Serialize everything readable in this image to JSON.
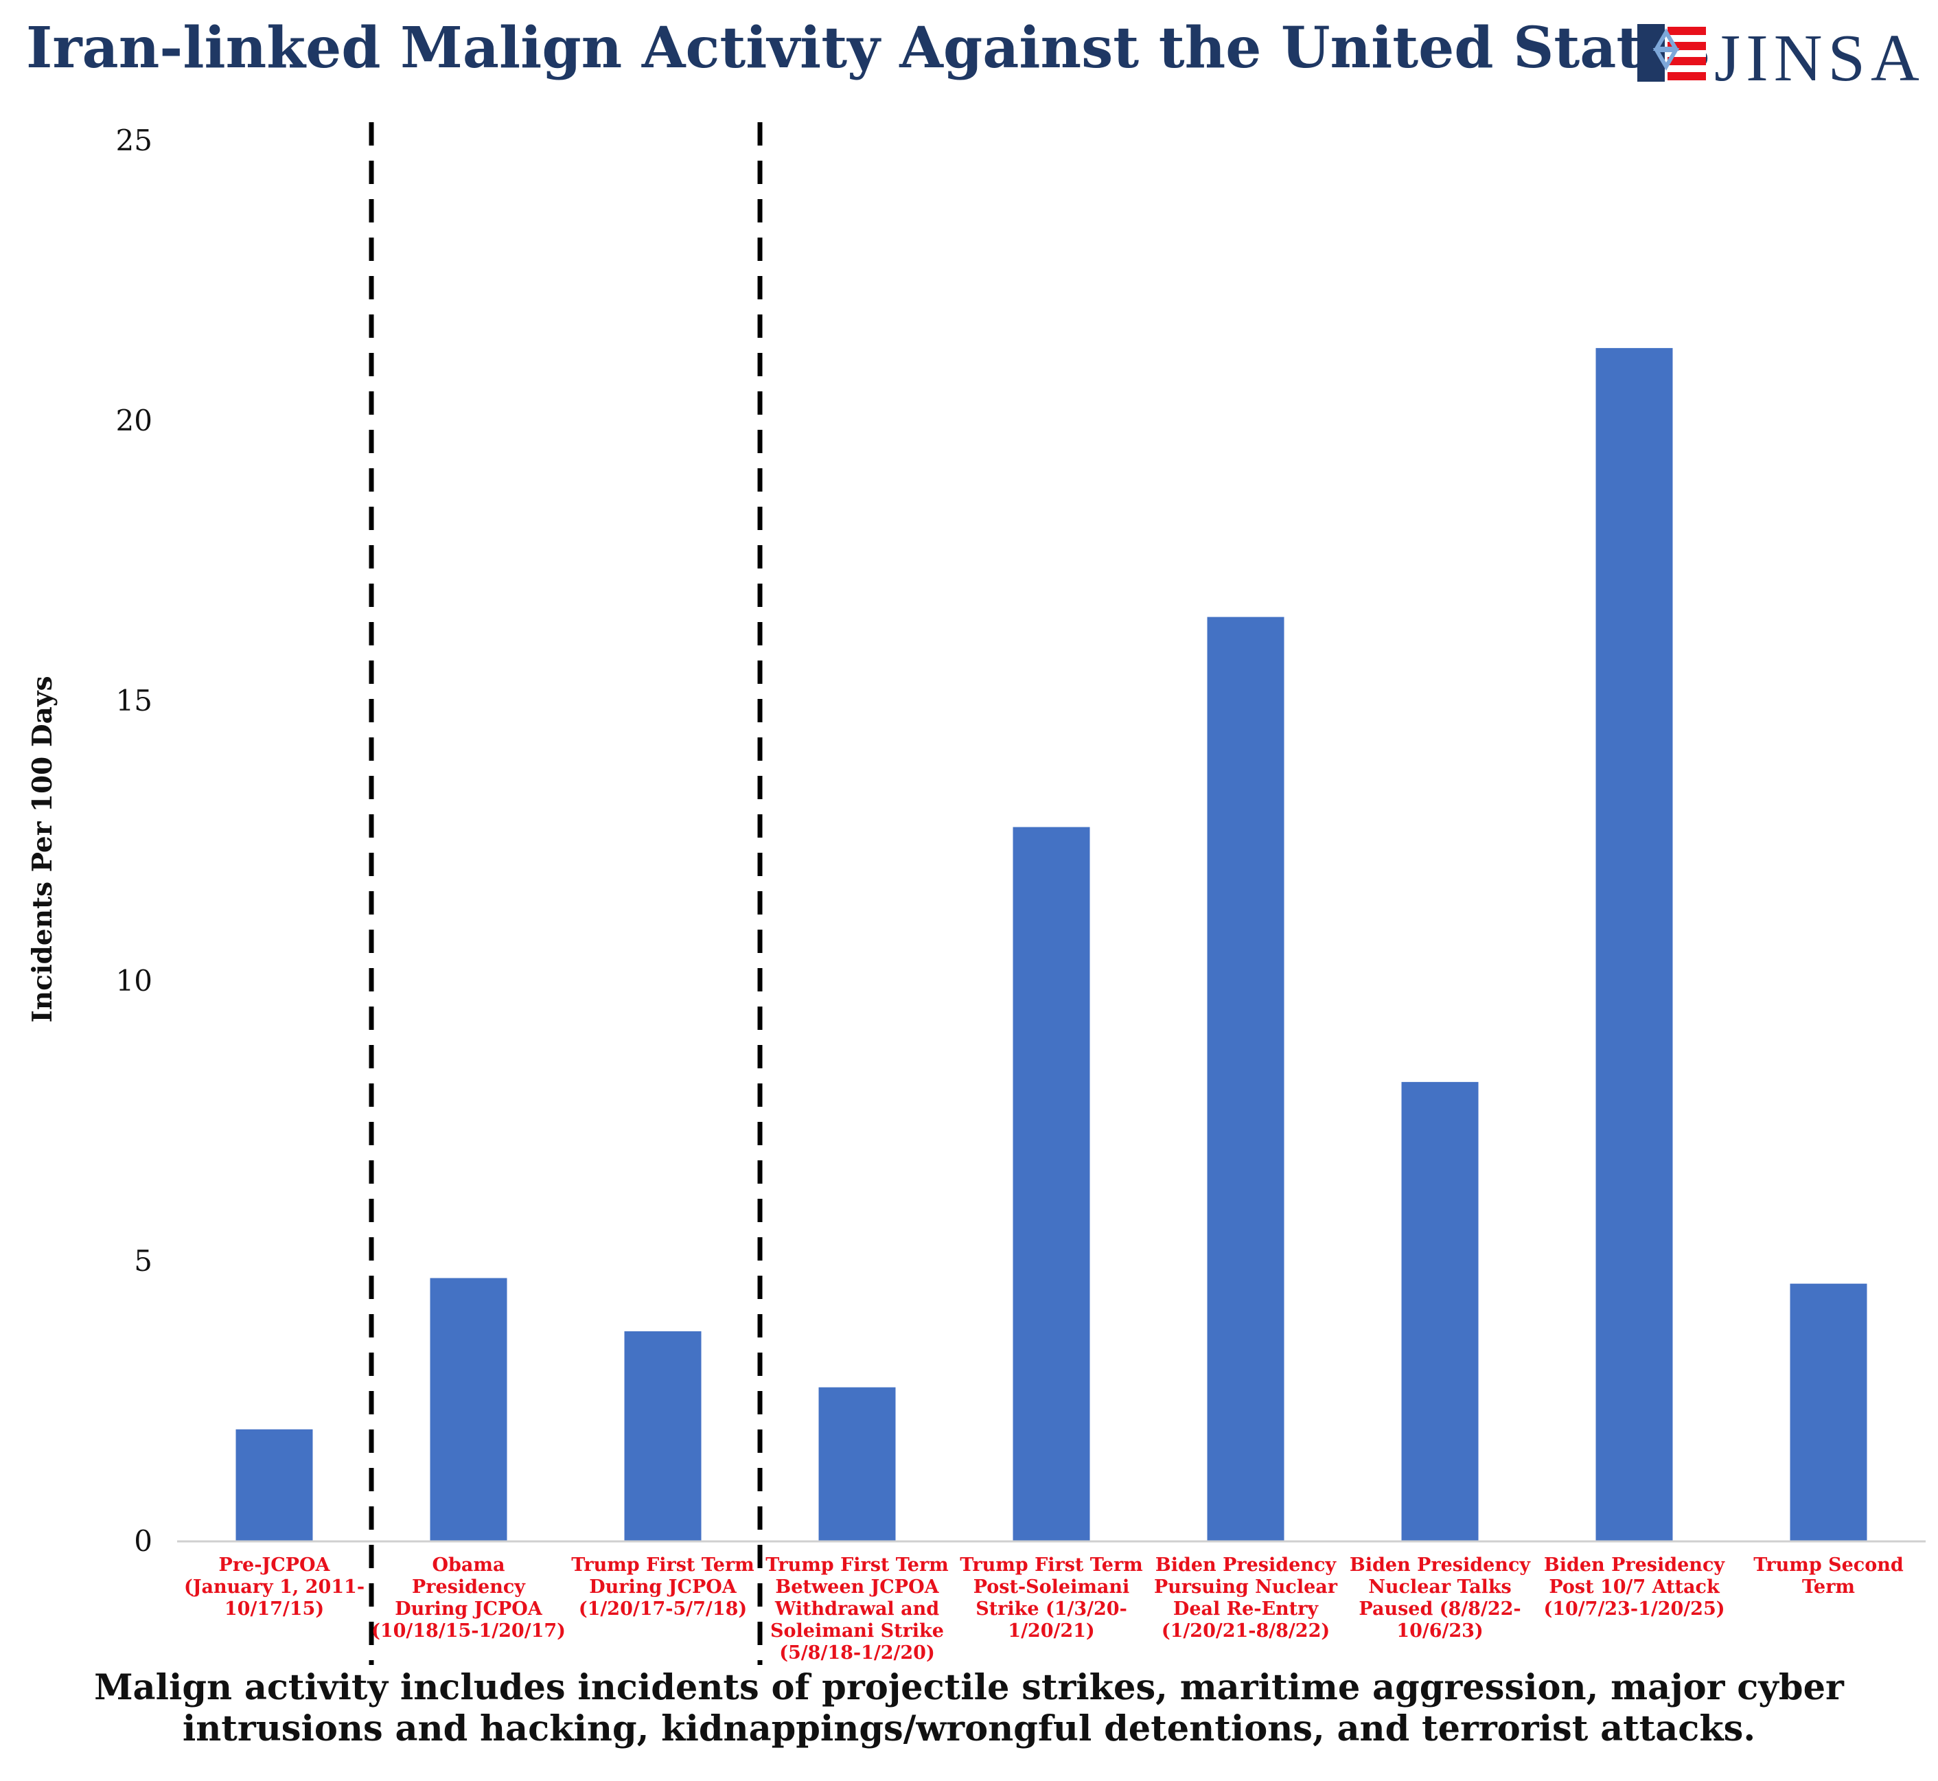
{
  "header": {
    "title": "Iran-linked Malign Activity Against the United States",
    "logo_text": "JINSA"
  },
  "colors": {
    "title": "#1f3864",
    "bar": "#4472c4",
    "category_label": "#e8101b",
    "text": "#111111"
  },
  "chart_data": {
    "type": "bar",
    "ylabel": "Incidents Per 100 Days",
    "ylim": [
      0,
      25
    ],
    "yticks": [
      "0",
      "5",
      "10",
      "15",
      "20",
      "25"
    ],
    "grid": false,
    "legend": "none",
    "categories": [
      [
        "Pre-JCPOA",
        "(January 1, 2011-",
        "10/17/15)"
      ],
      [
        "Obama",
        "Presidency",
        "During JCPOA",
        "(10/18/15-1/20/17)"
      ],
      [
        "Trump First Term",
        "During JCPOA",
        "(1/20/17-5/7/18)"
      ],
      [
        "Trump First Term",
        "Between JCPOA",
        "Withdrawal and",
        "Soleimani Strike",
        "(5/8/18-1/2/20)"
      ],
      [
        "Trump First Term",
        "Post-Soleimani",
        "Strike (1/3/20-",
        "1/20/21)"
      ],
      [
        "Biden Presidency",
        "Pursuing Nuclear",
        "Deal Re-Entry",
        "(1/20/21-8/8/22)"
      ],
      [
        "Biden Presidency",
        "Nuclear Talks",
        "Paused (8/8/22-",
        "10/6/23)"
      ],
      [
        "Biden Presidency",
        "Post 10/7 Attack",
        "(10/7/23-1/20/25)"
      ],
      [
        "Trump Second",
        "Term"
      ]
    ],
    "values": [
      2.0,
      4.7,
      3.75,
      2.75,
      12.75,
      16.5,
      8.2,
      21.3,
      4.6
    ],
    "dividers_after_category_index": [
      0,
      2
    ]
  },
  "footnote": {
    "line1": "Malign activity includes incidents of projectile strikes, maritime aggression, major cyber",
    "line2": "intrusions and hacking, kidnappings/wrongful detentions, and terrorist attacks."
  }
}
